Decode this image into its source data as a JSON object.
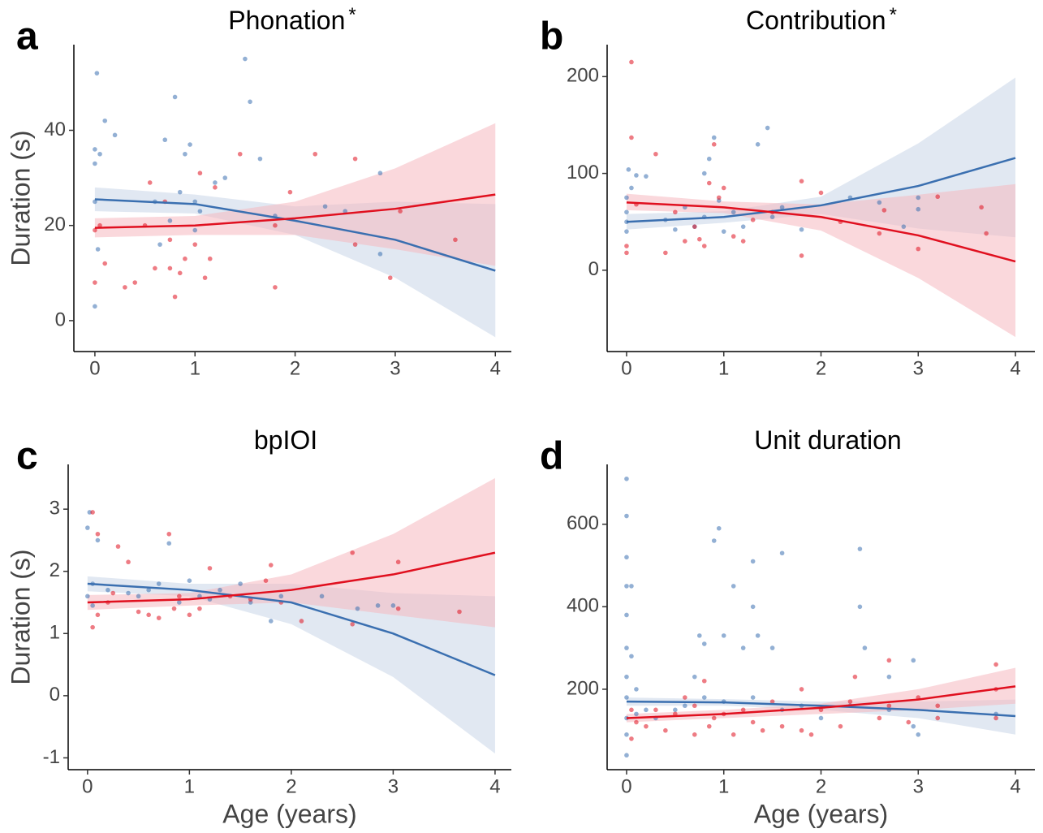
{
  "chart_data": [
    {
      "type": "scatter",
      "panel_label": "a",
      "title": "Phonation",
      "title_mark": "*",
      "ylabel": "Duration (s)",
      "xlim": [
        -0.21,
        4.16
      ],
      "xticks": [
        0,
        1,
        2,
        3,
        4
      ],
      "ylim": [
        -6.5,
        58
      ],
      "yticks": [
        0,
        20,
        40
      ],
      "series": [
        {
          "color": "#3a6fb0",
          "band_color": "#c9d6e8",
          "x": [
            0,
            0,
            0.02,
            0.05,
            0.1,
            0.2,
            0,
            0,
            0.03,
            0.6,
            0.7,
            0.8,
            0.85,
            0.9,
            0.95,
            1,
            1.05,
            1.2,
            1.3,
            1.5,
            1.55,
            1.65,
            1.8,
            2.3,
            2.85,
            2.85,
            2.5,
            0.65,
            0.75,
            1.0
          ],
          "y": [
            3,
            36,
            52,
            35,
            42,
            39,
            33,
            25,
            15,
            25,
            38,
            47,
            27,
            35,
            37,
            25,
            23,
            29,
            30,
            55,
            46,
            34,
            22,
            24,
            31,
            14,
            23,
            16,
            21,
            19
          ],
          "fit_x": [
            0,
            1,
            2,
            3,
            4
          ],
          "fit_y": [
            25.5,
            24.5,
            21,
            17,
            10.5
          ],
          "fit_lower": [
            23,
            22.5,
            18,
            9,
            -3.5
          ],
          "fit_upper": [
            28,
            26.5,
            24,
            25,
            24.5
          ]
        },
        {
          "color": "#e0101f",
          "band_color": "#f6b8bf",
          "x": [
            0,
            0,
            0.05,
            0.1,
            0.3,
            0.4,
            0.5,
            0.55,
            0.6,
            0.7,
            0.75,
            0.8,
            0.85,
            0.9,
            1,
            1.05,
            1.1,
            1.2,
            1.45,
            1.8,
            1.8,
            1.95,
            2.2,
            2.6,
            2.6,
            2.95,
            3.05,
            3.6,
            0.75,
            1.15
          ],
          "y": [
            19,
            8,
            20,
            12,
            7,
            8,
            20,
            29,
            11,
            25,
            17,
            5,
            10,
            13,
            16,
            31,
            9,
            28,
            35,
            7,
            20,
            27,
            35,
            34,
            16,
            9,
            23,
            17,
            11,
            13
          ],
          "fit_x": [
            0,
            1,
            2,
            3,
            4
          ],
          "fit_y": [
            19.5,
            20,
            21.5,
            23.5,
            26.5
          ],
          "fit_lower": [
            17.5,
            18,
            18,
            15,
            11.5
          ],
          "fit_upper": [
            21.5,
            22,
            25,
            32,
            41.5
          ]
        }
      ]
    },
    {
      "type": "scatter",
      "panel_label": "b",
      "title": "Contribution",
      "title_mark": "*",
      "xlim": [
        -0.2,
        4.2
      ],
      "xticks": [
        0,
        1,
        2,
        3,
        4
      ],
      "ylim": [
        -84,
        233
      ],
      "yticks": [
        0,
        100,
        200
      ],
      "series": [
        {
          "color": "#3a6fb0",
          "band_color": "#c9d6e8",
          "x": [
            0,
            0,
            0.02,
            0.05,
            0.1,
            0.2,
            0,
            0,
            0.4,
            0.6,
            0.8,
            0.8,
            0.85,
            0.9,
            0.95,
            1.0,
            1.2,
            1.35,
            1.45,
            1.5,
            1.6,
            1.8,
            2.3,
            2.6,
            2.85,
            3.0,
            3.0,
            0.7,
            1.1,
            0.5
          ],
          "y": [
            75,
            50,
            104,
            85,
            98,
            97,
            60,
            40,
            52,
            65,
            100,
            55,
            115,
            137,
            72,
            40,
            45,
            130,
            147,
            55,
            65,
            42,
            75,
            70,
            45,
            75,
            63,
            45,
            60,
            42
          ],
          "fit_x": [
            0,
            1,
            2,
            3,
            4
          ],
          "fit_y": [
            50,
            55,
            67,
            87,
            116
          ],
          "fit_lower": [
            42,
            49,
            58,
            43,
            34
          ],
          "fit_upper": [
            58,
            61,
            76,
            131,
            199
          ]
        },
        {
          "color": "#e0101f",
          "band_color": "#f6b8bf",
          "x": [
            0.05,
            0.05,
            0,
            0,
            0.1,
            0.3,
            0.4,
            0.5,
            0.6,
            0.7,
            0.75,
            0.8,
            0.85,
            0.9,
            1,
            1.1,
            1.2,
            1.3,
            1.5,
            1.8,
            1.8,
            2.0,
            2.2,
            2.6,
            2.65,
            3.0,
            3.2,
            3.65,
            3.7,
            0.95
          ],
          "y": [
            215,
            137,
            25,
            18,
            68,
            120,
            18,
            60,
            30,
            45,
            32,
            25,
            90,
            130,
            85,
            35,
            30,
            52,
            60,
            92,
            15,
            80,
            50,
            38,
            62,
            22,
            76,
            65,
            38,
            75
          ],
          "fit_x": [
            0,
            1,
            2,
            3,
            4
          ],
          "fit_y": [
            70,
            65,
            55,
            36,
            9
          ],
          "fit_lower": [
            62,
            59,
            41,
            -8,
            -69
          ],
          "fit_upper": [
            79,
            71,
            68,
            78,
            89
          ]
        }
      ]
    },
    {
      "type": "scatter",
      "panel_label": "c",
      "title": "bpIOI",
      "ylabel": "Duration (s)",
      "xlabel": "Age (years)",
      "xlim": [
        -0.19,
        4.16
      ],
      "xticks": [
        0,
        1,
        2,
        3,
        4
      ],
      "ylim": [
        -1.19,
        3.72
      ],
      "yticks": [
        -1,
        0,
        1,
        2,
        3
      ],
      "series": [
        {
          "color": "#3a6fb0",
          "band_color": "#c9d6e8",
          "x": [
            0,
            0.02,
            0,
            0.05,
            0.1,
            0.2,
            0.5,
            0.7,
            0.8,
            0.9,
            1,
            1.1,
            1.3,
            1.5,
            1.6,
            1.8,
            1.9,
            2.3,
            2.65,
            2.85,
            3,
            0.6,
            0.05,
            1.2,
            0.4
          ],
          "y": [
            2.7,
            2.95,
            1.6,
            1.8,
            2.5,
            1.7,
            1.6,
            1.8,
            2.45,
            1.5,
            1.85,
            1.6,
            1.7,
            1.8,
            1.5,
            1.2,
            1.6,
            1.6,
            1.4,
            1.45,
            1.45,
            1.7,
            1.45,
            1.55,
            1.65
          ],
          "fit_x": [
            0,
            1,
            2,
            3,
            4
          ],
          "fit_y": [
            1.8,
            1.7,
            1.5,
            1.0,
            0.33
          ],
          "fit_lower": [
            1.68,
            1.6,
            1.15,
            0.3,
            -0.93
          ],
          "fit_upper": [
            1.92,
            1.8,
            1.8,
            1.65,
            1.6
          ]
        },
        {
          "color": "#e0101f",
          "band_color": "#f6b8bf",
          "x": [
            0.05,
            0.1,
            0.05,
            0.1,
            0.2,
            0.3,
            0.4,
            0.5,
            0.6,
            0.7,
            0.8,
            0.85,
            0.9,
            1,
            1.1,
            1.2,
            1.4,
            1.6,
            1.8,
            1.9,
            2.1,
            2.6,
            2.6,
            3.05,
            3.05,
            3.65,
            0.25,
            1.75
          ],
          "y": [
            2.95,
            2.6,
            1.1,
            1.3,
            1.5,
            2.4,
            2.15,
            1.35,
            1.3,
            1.25,
            2.6,
            1.4,
            1.6,
            1.3,
            1.4,
            2.05,
            1.6,
            1.55,
            2.1,
            1.5,
            1.2,
            2.3,
            1.15,
            2.15,
            1.4,
            1.35,
            1.65,
            1.85
          ],
          "fit_x": [
            0,
            1,
            2,
            3,
            4
          ],
          "fit_y": [
            1.5,
            1.55,
            1.7,
            1.95,
            2.3
          ],
          "fit_lower": [
            1.38,
            1.45,
            1.5,
            1.3,
            1.1
          ],
          "fit_upper": [
            1.62,
            1.65,
            1.95,
            2.6,
            3.5
          ]
        }
      ]
    },
    {
      "type": "scatter",
      "panel_label": "d",
      "title": "Unit duration",
      "xlabel": "Age (years)",
      "xlim": [
        -0.2,
        4.2
      ],
      "xticks": [
        0,
        1,
        2,
        3,
        4
      ],
      "ylim": [
        5,
        745
      ],
      "yticks": [
        200,
        400,
        600
      ],
      "series": [
        {
          "color": "#3a6fb0",
          "band_color": "#c9d6e8",
          "x": [
            0,
            0,
            0,
            0,
            0,
            0,
            0,
            0,
            0,
            0,
            0,
            0.05,
            0.05,
            0.1,
            0.1,
            0.2,
            0.3,
            0.5,
            0.6,
            0.7,
            0.75,
            0.8,
            0.8,
            0.9,
            0.95,
            1,
            1,
            1.1,
            1.2,
            1.3,
            1.3,
            1.3,
            1.35,
            1.5,
            1.6,
            1.6,
            1.8,
            2.0,
            2.3,
            2.4,
            2.4,
            2.45,
            2.7,
            2.7,
            2.95,
            2.95,
            3.0,
            3.8
          ],
          "y": [
            710,
            620,
            520,
            450,
            380,
            300,
            230,
            180,
            130,
            90,
            40,
            450,
            280,
            200,
            140,
            150,
            130,
            150,
            160,
            230,
            330,
            310,
            180,
            560,
            590,
            330,
            170,
            450,
            300,
            510,
            400,
            180,
            330,
            300,
            530,
            150,
            160,
            130,
            160,
            540,
            400,
            300,
            230,
            150,
            270,
            110,
            90,
            140
          ],
          "fit_x": [
            0,
            1,
            2,
            3,
            4
          ],
          "fit_y": [
            170,
            168,
            160,
            150,
            135
          ],
          "fit_lower": [
            160,
            160,
            150,
            130,
            90
          ],
          "fit_upper": [
            180,
            176,
            170,
            170,
            175
          ]
        },
        {
          "color": "#e0101f",
          "band_color": "#f6b8bf",
          "x": [
            0.05,
            0.05,
            0.1,
            0.2,
            0.3,
            0.4,
            0.5,
            0.6,
            0.7,
            0.7,
            0.8,
            0.85,
            0.9,
            1,
            1.1,
            1.2,
            1.3,
            1.4,
            1.5,
            1.6,
            1.8,
            1.8,
            1.9,
            2.0,
            2.2,
            2.3,
            2.35,
            2.6,
            2.7,
            2.7,
            2.9,
            3.0,
            3.2,
            3.2,
            3.8,
            3.8,
            3.8
          ],
          "y": [
            150,
            80,
            120,
            110,
            150,
            100,
            140,
            180,
            160,
            90,
            220,
            110,
            130,
            140,
            90,
            150,
            120,
            100,
            170,
            110,
            200,
            100,
            90,
            150,
            110,
            170,
            230,
            130,
            270,
            160,
            120,
            180,
            160,
            130,
            260,
            130,
            200
          ],
          "fit_x": [
            0,
            1,
            2,
            3,
            4
          ],
          "fit_y": [
            130,
            140,
            155,
            175,
            207
          ],
          "fit_lower": [
            120,
            130,
            140,
            150,
            165
          ],
          "fit_upper": [
            140,
            150,
            165,
            200,
            252
          ]
        }
      ]
    }
  ]
}
